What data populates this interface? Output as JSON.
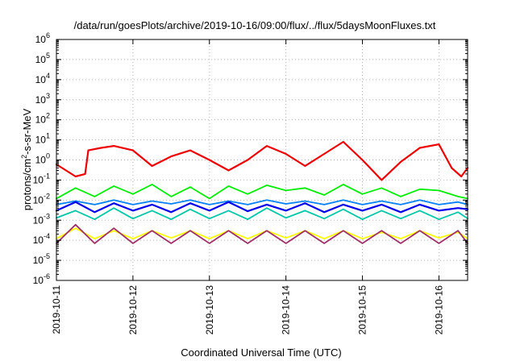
{
  "chart_data": {
    "type": "line",
    "title": "/data/run/goesPlots/archive/2019-10-16/09:00/flux/../flux/5daysMoonFluxes.txt",
    "xlabel": "Coordinated Universal Time (UTC)",
    "ylabel_parts": {
      "base": "protons/cm",
      "sup": "2",
      "rest": "-s-sr-MeV"
    },
    "x_scale": "time",
    "y_scale": "log",
    "xlim": [
      "2019-10-11T00:00",
      "2019-10-16T09:00"
    ],
    "ylim": [
      1e-06,
      1000000.0
    ],
    "x_ticks": [
      "2019-10-11",
      "2019-10-12",
      "2019-10-13",
      "2019-10-14",
      "2019-10-15",
      "2019-10-16"
    ],
    "y_ticks": [
      {
        "mant": "10",
        "exp": "-6"
      },
      {
        "mant": "10",
        "exp": "-5"
      },
      {
        "mant": "10",
        "exp": "-4"
      },
      {
        "mant": "10",
        "exp": "-3"
      },
      {
        "mant": "10",
        "exp": "-2"
      },
      {
        "mant": "10",
        "exp": "-1"
      },
      {
        "mant": "10",
        "exp": "0"
      },
      {
        "mant": "10",
        "exp": "1"
      },
      {
        "mant": "10",
        "exp": "2"
      },
      {
        "mant": "10",
        "exp": "3"
      },
      {
        "mant": "10",
        "exp": "4"
      },
      {
        "mant": "10",
        "exp": "5"
      },
      {
        "mant": "10",
        "exp": "6"
      }
    ],
    "grid": true,
    "legend": "none",
    "series": [
      {
        "color": "#00ee00",
        "x": [
          "2019-10-11T00:00",
          "2019-10-11T06:00",
          "2019-10-11T12:00",
          "2019-10-11T18:00",
          "2019-10-12T00:00",
          "2019-10-12T06:00",
          "2019-10-12T12:00",
          "2019-10-12T18:00",
          "2019-10-13T00:00",
          "2019-10-13T06:00",
          "2019-10-13T12:00",
          "2019-10-13T18:00",
          "2019-10-14T00:00",
          "2019-10-14T06:00",
          "2019-10-14T12:00",
          "2019-10-14T18:00",
          "2019-10-15T00:00",
          "2019-10-15T06:00",
          "2019-10-15T12:00",
          "2019-10-15T18:00",
          "2019-10-16T00:00",
          "2019-10-16T06:00",
          "2019-10-16T09:00"
        ],
        "y": [
          0.012,
          0.04,
          0.015,
          0.05,
          0.02,
          0.06,
          0.015,
          0.045,
          0.012,
          0.05,
          0.02,
          0.055,
          0.03,
          0.04,
          0.018,
          0.06,
          0.02,
          0.04,
          0.015,
          0.035,
          0.03,
          0.015,
          0.012
        ]
      },
      {
        "color": "#00c8a8",
        "x": [
          "2019-10-11T00:00",
          "2019-10-11T06:00",
          "2019-10-11T12:00",
          "2019-10-11T18:00",
          "2019-10-12T00:00",
          "2019-10-12T06:00",
          "2019-10-12T12:00",
          "2019-10-12T18:00",
          "2019-10-13T00:00",
          "2019-10-13T06:00",
          "2019-10-13T12:00",
          "2019-10-13T18:00",
          "2019-10-14T00:00",
          "2019-10-14T06:00",
          "2019-10-14T12:00",
          "2019-10-14T18:00",
          "2019-10-15T00:00",
          "2019-10-15T06:00",
          "2019-10-15T12:00",
          "2019-10-15T18:00",
          "2019-10-16T00:00",
          "2019-10-16T06:00",
          "2019-10-16T09:00"
        ],
        "y": [
          0.0013,
          0.003,
          0.0011,
          0.004,
          0.0012,
          0.003,
          0.0011,
          0.0035,
          0.0012,
          0.003,
          0.0011,
          0.004,
          0.0013,
          0.003,
          0.0012,
          0.0035,
          0.0011,
          0.003,
          0.0012,
          0.003,
          0.0011,
          0.0025,
          0.0012
        ]
      },
      {
        "color": "#0080ff",
        "x": [
          "2019-10-11T00:00",
          "2019-10-11T06:00",
          "2019-10-11T12:00",
          "2019-10-11T18:00",
          "2019-10-12T00:00",
          "2019-10-12T06:00",
          "2019-10-12T12:00",
          "2019-10-12T18:00",
          "2019-10-13T00:00",
          "2019-10-13T06:00",
          "2019-10-13T12:00",
          "2019-10-13T18:00",
          "2019-10-14T00:00",
          "2019-10-14T06:00",
          "2019-10-14T12:00",
          "2019-10-14T18:00",
          "2019-10-15T00:00",
          "2019-10-15T06:00",
          "2019-10-15T12:00",
          "2019-10-15T18:00",
          "2019-10-16T00:00",
          "2019-10-16T06:00",
          "2019-10-16T09:00"
        ],
        "y": [
          0.006,
          0.009,
          0.006,
          0.01,
          0.006,
          0.009,
          0.0065,
          0.01,
          0.006,
          0.009,
          0.006,
          0.01,
          0.0065,
          0.009,
          0.006,
          0.01,
          0.006,
          0.009,
          0.006,
          0.01,
          0.006,
          0.008,
          0.006
        ]
      },
      {
        "color": "#0000ee",
        "x": [
          "2019-10-11T00:00",
          "2019-10-11T06:00",
          "2019-10-11T12:00",
          "2019-10-11T18:00",
          "2019-10-12T00:00",
          "2019-10-12T06:00",
          "2019-10-12T12:00",
          "2019-10-12T18:00",
          "2019-10-13T00:00",
          "2019-10-13T06:00",
          "2019-10-13T12:00",
          "2019-10-13T18:00",
          "2019-10-14T00:00",
          "2019-10-14T06:00",
          "2019-10-14T12:00",
          "2019-10-14T18:00",
          "2019-10-15T00:00",
          "2019-10-15T06:00",
          "2019-10-15T12:00",
          "2019-10-15T18:00",
          "2019-10-16T00:00",
          "2019-10-16T06:00",
          "2019-10-16T09:00"
        ],
        "y": [
          0.003,
          0.008,
          0.0025,
          0.007,
          0.003,
          0.006,
          0.0025,
          0.007,
          0.003,
          0.008,
          0.0028,
          0.006,
          0.003,
          0.007,
          0.0025,
          0.006,
          0.003,
          0.006,
          0.0025,
          0.006,
          0.003,
          0.004,
          0.0035
        ]
      },
      {
        "color": "#ffff00",
        "x": [
          "2019-10-11T00:00",
          "2019-10-11T06:00",
          "2019-10-11T12:00",
          "2019-10-11T18:00",
          "2019-10-12T00:00",
          "2019-10-12T06:00",
          "2019-10-12T12:00",
          "2019-10-12T18:00",
          "2019-10-13T00:00",
          "2019-10-13T06:00",
          "2019-10-13T12:00",
          "2019-10-13T18:00",
          "2019-10-14T00:00",
          "2019-10-14T06:00",
          "2019-10-14T12:00",
          "2019-10-14T18:00",
          "2019-10-15T00:00",
          "2019-10-15T06:00",
          "2019-10-15T12:00",
          "2019-10-15T18:00",
          "2019-10-16T00:00",
          "2019-10-16T06:00",
          "2019-10-16T09:00"
        ],
        "y": [
          0.00012,
          0.0004,
          0.00012,
          0.0003,
          0.00012,
          0.0003,
          0.00013,
          0.0003,
          0.00012,
          0.0003,
          0.00012,
          0.0003,
          0.00013,
          0.0003,
          0.00012,
          0.0003,
          0.00012,
          0.00025,
          0.00012,
          0.0003,
          0.00013,
          0.00025,
          0.00012
        ]
      },
      {
        "color": "#a0306a",
        "x": [
          "2019-10-11T00:00",
          "2019-10-11T06:00",
          "2019-10-11T12:00",
          "2019-10-11T18:00",
          "2019-10-12T00:00",
          "2019-10-12T06:00",
          "2019-10-12T12:00",
          "2019-10-12T18:00",
          "2019-10-13T00:00",
          "2019-10-13T06:00",
          "2019-10-13T12:00",
          "2019-10-13T18:00",
          "2019-10-14T00:00",
          "2019-10-14T06:00",
          "2019-10-14T12:00",
          "2019-10-14T18:00",
          "2019-10-15T00:00",
          "2019-10-15T06:00",
          "2019-10-15T12:00",
          "2019-10-15T18:00",
          "2019-10-16T00:00",
          "2019-10-16T06:00",
          "2019-10-16T09:00"
        ],
        "y": [
          7e-05,
          0.0006,
          7e-05,
          0.0004,
          7e-05,
          0.0003,
          7e-05,
          0.0003,
          7e-05,
          0.0003,
          7e-05,
          0.0003,
          7e-05,
          0.0003,
          7e-05,
          0.0003,
          7e-05,
          0.0003,
          7e-05,
          0.0003,
          7e-05,
          0.0003,
          7e-05
        ]
      },
      {
        "color": "#ee0000",
        "x": [
          "2019-10-11T00:00",
          "2019-10-11T03:00",
          "2019-10-11T06:00",
          "2019-10-11T09:00",
          "2019-10-11T10:00",
          "2019-10-11T14:00",
          "2019-10-11T18:00",
          "2019-10-12T00:00",
          "2019-10-12T06:00",
          "2019-10-12T12:00",
          "2019-10-12T18:00",
          "2019-10-13T00:00",
          "2019-10-13T06:00",
          "2019-10-13T12:00",
          "2019-10-13T18:00",
          "2019-10-14T00:00",
          "2019-10-14T06:00",
          "2019-10-14T12:00",
          "2019-10-14T18:00",
          "2019-10-15T00:00",
          "2019-10-15T06:00",
          "2019-10-15T12:00",
          "2019-10-15T18:00",
          "2019-10-16T00:00",
          "2019-10-16T04:00",
          "2019-10-16T07:00",
          "2019-10-16T09:00"
        ],
        "y": [
          0.6,
          0.3,
          0.15,
          0.2,
          3,
          4,
          5,
          3,
          0.5,
          1.5,
          3,
          1.0,
          0.3,
          1,
          5,
          2,
          0.5,
          2,
          8,
          1,
          0.1,
          0.8,
          4,
          6,
          0.4,
          0.15,
          0.4
        ]
      }
    ]
  }
}
